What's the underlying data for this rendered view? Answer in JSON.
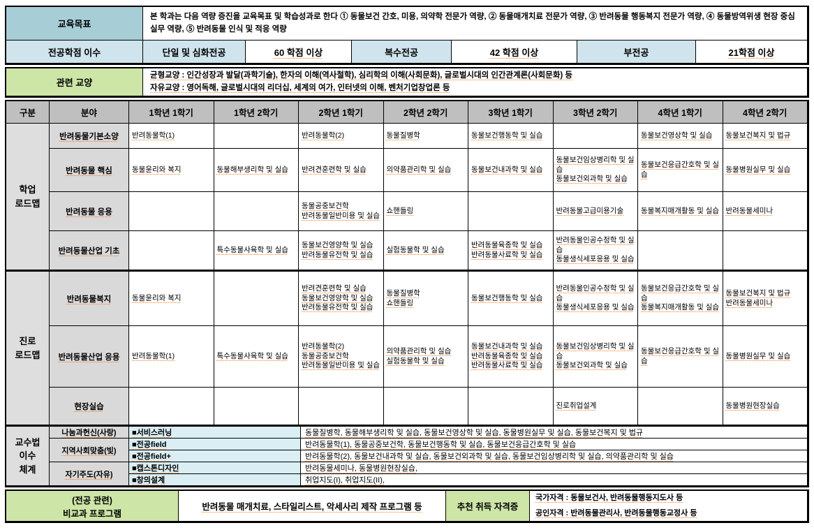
{
  "colors": {
    "teal": "#a7cdd6",
    "light_blue": "#cfe4ec",
    "green": "#cde5a7",
    "header_gray": "#bfbfbf",
    "field_gray": "#d9d9d9",
    "method_cyan": "#daeef3",
    "squiggle": "#ff7a1e"
  },
  "top": {
    "goal_label": "교육목표",
    "goal_text": "본 학과는 다음 역량 증진을 교육목표 및 학습성과로 한다 ① 동물보건 간호, 미용, 의약학 전문가 역량, ② 동물매개치료 전문가 역량, ③ 반려동물 행동복지 전문가 역량, ④ 동물방역위생 현장 중심 실무 역량, ⑤ 반려동물 인식 및 적응 역량",
    "credits_label": "전공학점 이수",
    "credit_items": [
      {
        "label": "단일 및 심화전공",
        "value": "60 학점 이상"
      },
      {
        "label": "복수전공",
        "value": "42 학점 이상"
      },
      {
        "label": "부전공",
        "value": "21학점 이상"
      }
    ]
  },
  "liberal": {
    "label": "관련 교양",
    "lines": [
      "균형교양 : 인간성장과 발달(과학기술), 한자의 이해(역사철학), 심리학의 이해(사회문화), 글로벌시대의 인간관계론(사회문화) 등",
      "자유교양 : 영어독해, 글로벌시대의 리더십, 세계의 여가, 인터넷의 이해, 벤처기업창업론 등"
    ]
  },
  "roadmap": {
    "headers": [
      "구분",
      "분야",
      "1학년 1학기",
      "1학년 2학기",
      "2학년 1학기",
      "2학년 2학기",
      "3학년 1학기",
      "3학년 2학기",
      "4학년 1학기",
      "4학년 2학기"
    ],
    "academic": {
      "group_label": "학업 로드맵",
      "rows": [
        {
          "field": "반려동물기본소양",
          "semesters": [
            [
              "반려동물학(1)"
            ],
            [],
            [
              "반려동물학(2)"
            ],
            [
              "동물질병학"
            ],
            [
              "동물보건행동학 및 실습"
            ],
            [],
            [
              "동물보건영상학 및 실습"
            ],
            [
              "동물보건복지 및 법규"
            ]
          ]
        },
        {
          "field": "반려동물 핵심",
          "semesters": [
            [
              "동물윤리와 복지"
            ],
            [
              "동물해부생리학 및 실습"
            ],
            [
              "반려견훈련학 및 실습"
            ],
            [
              "의약품관리학 및 실습"
            ],
            [
              "동물보건내과학 및 실습"
            ],
            [
              "동물보건임상병리학 및 실습",
              "동물보건외과학 및 실습"
            ],
            [
              "동물보건응급간호학 및 실습"
            ],
            [
              "동물병원실무 및 실습"
            ]
          ]
        },
        {
          "field": "반려동물 응용",
          "semesters": [
            [],
            [],
            [
              "동물공중보건학",
              "반려동물일반미용 및 실습"
            ],
            [
              "쇼핸들링"
            ],
            [],
            [
              "반려동물고급미용기술"
            ],
            [
              "동물복지매개활동 및 실습"
            ],
            [
              "반려동물세미나"
            ]
          ]
        },
        {
          "field": "반려동물산업 기초",
          "semesters": [
            [],
            [
              "특수동물사육학 및 실습"
            ],
            [
              "동물보건영양학 및 실습",
              "반려동물유전학 및 실습"
            ],
            [
              "실험동물학 및 실습"
            ],
            [
              "반려동물육종학 및 실습",
              "반려동물사료학 및 실습"
            ],
            [
              "반려동물인공수정학 및 실습",
              "동물생식세포응용 및 실습"
            ],
            [],
            []
          ]
        }
      ]
    },
    "career": {
      "group_label": "진로 로드맵",
      "rows": [
        {
          "field": "반려동물복지",
          "semesters": [
            [
              "동물윤리와 복지"
            ],
            [],
            [
              "반려견훈련학 및 실습",
              "동물보건영양학 및 실습",
              "반려동물유전학 및 실습"
            ],
            [
              "동물질병학",
              "쇼핸들링"
            ],
            [
              "동물보건행동학 및 실습"
            ],
            [
              "반려동물인공수정학 및 실습",
              "동물생식세포응용 및 실습"
            ],
            [
              "동물보건응급간호학 및 실습",
              "동물복지매개활동 및 실습"
            ],
            [
              "동물보건복지 및 법규",
              "반려동물세미나"
            ]
          ]
        },
        {
          "field": "반려동물산업 응용",
          "semesters": [
            [
              "반려동물학(1)"
            ],
            [
              "특수동물사육학 및 실습"
            ],
            [
              "반려동물학(2)",
              "동물공중보건학",
              "반려동물일반미용 및 실습"
            ],
            [
              "의약품관리학 및 실습",
              "실험동물학 및 실습"
            ],
            [
              "동물보건내과학 및 실습",
              "반려동물육종학 및 실습",
              "반려동물사료학 및 실습"
            ],
            [
              "동물보건임상병리학 및 실습",
              "동물보건외과학 및 실습"
            ],
            [
              "동물보건응급간호학 및 실습"
            ],
            [
              "동물병원실무 및 실습"
            ]
          ]
        },
        {
          "field": "현장실습",
          "semesters": [
            [],
            [],
            [],
            [],
            [],
            [
              "진로취업설계"
            ],
            [],
            [
              "동물병원현장실습"
            ]
          ]
        }
      ]
    }
  },
  "pedagogy": {
    "group_label": "교수법 이수 체계",
    "categories": [
      {
        "label": "나눔과헌신(사랑)"
      },
      {
        "label": "지역사회맞춤(빛)"
      },
      {
        "label": "자기주도(자유)"
      }
    ],
    "rows": [
      {
        "method": "■서비스러닝",
        "courses": "동물질병학, 동물해부생리학 및 실습, 동물보건영상학 및 실습, 동물병원실무 및 실습, 동물보건복지 및 법규"
      },
      {
        "method": "■전공field",
        "courses": "반려동물학(1), 동물공중보건학, 동물보건행동학 및 실습, 동물보건응급간호학 및 실습"
      },
      {
        "method": "■전공field+",
        "courses": "반려동물학(2), 동물보건내과학 및 실습, 동물보건외과학 및 실습, 동물보건임상병리학 및 실습, 의약품관리학 및 실습"
      },
      {
        "method": "■캡스톤디자인",
        "courses": "반려동물세미나, 동물병원현장실습,"
      },
      {
        "method": "■창의설계",
        "courses": "취업지도(I), 취업지도(II),"
      }
    ]
  },
  "bottom": {
    "label_lines": [
      "(전공 관련)",
      "비교과 프로그램"
    ],
    "programs": "반려동물 매개치료, 스타일리스트, 악세사리 제작 프로그램 등",
    "cert_label": "추천 취득 자격증",
    "cert_lines": [
      "국가자격 : 동물보건사, 반려동물행동지도사 등",
      "공인자격 : 반려동물관리사, 반려동물행동교정사 등"
    ]
  }
}
